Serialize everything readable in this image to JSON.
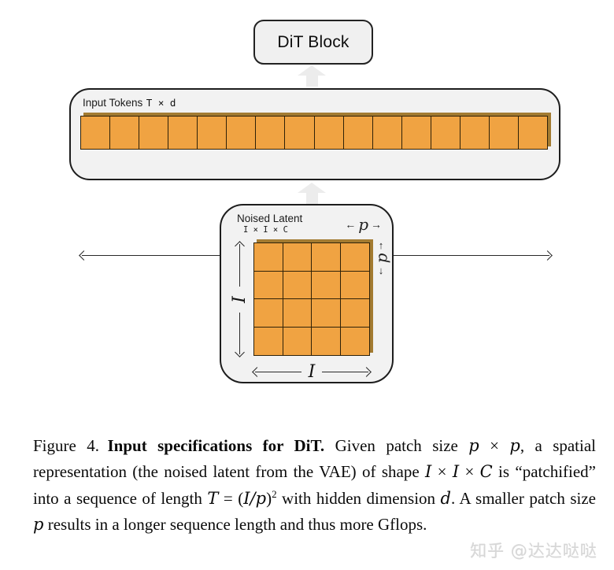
{
  "colors": {
    "panel_fill": "#f2f2f2",
    "panel_border": "#1d1d1d",
    "cell_orange": "#f0a342",
    "cell_border": "#2e2108",
    "cell_depth": "#a37b31",
    "flow_arrow": "#ececec",
    "watermark_gray": "#d7d7d7"
  },
  "dit_block": {
    "label": "DiT Block"
  },
  "input_tokens": {
    "title": "Input Tokens",
    "dims": "T × d",
    "token_count": 16,
    "formula": {
      "lhs": "T",
      "mid": " = (",
      "frac": "I/p",
      "close": ")",
      "sup": "2"
    }
  },
  "noised_latent": {
    "title": "Noised Latent",
    "dims": "I × I × C",
    "grid_rows": 4,
    "grid_cols": 4,
    "height_label": "I",
    "width_label": "I",
    "patch_label": "p",
    "arrows": {
      "left": "←",
      "right": "→",
      "up": "↑",
      "down": "↓"
    }
  },
  "caption": {
    "segments": [
      {
        "text": "Figure 4. ",
        "style": "plain"
      },
      {
        "text": "Input specifications for DiT.",
        "style": "bold"
      },
      {
        "text": " Given patch size ",
        "style": "plain"
      },
      {
        "text": "p",
        "style": "math"
      },
      {
        "text": " × ",
        "style": "plain"
      },
      {
        "text": "p",
        "style": "math"
      },
      {
        "text": ", a spatial representation (the noised latent from the VAE) of shape ",
        "style": "plain"
      },
      {
        "text": "I",
        "style": "math"
      },
      {
        "text": " × ",
        "style": "plain"
      },
      {
        "text": "I",
        "style": "math"
      },
      {
        "text": " × ",
        "style": "plain"
      },
      {
        "text": "C",
        "style": "math"
      },
      {
        "text": " is “patchified” into a sequence of length ",
        "style": "plain"
      },
      {
        "text": "T",
        "style": "math"
      },
      {
        "text": " = (",
        "style": "plain"
      },
      {
        "text": "I/p",
        "style": "math"
      },
      {
        "text": ")",
        "style": "plain"
      },
      {
        "text": "2",
        "style": "sup"
      },
      {
        "text": " with hidden dimension ",
        "style": "plain"
      },
      {
        "text": "d",
        "style": "math"
      },
      {
        "text": ". A smaller patch size ",
        "style": "plain"
      },
      {
        "text": "p",
        "style": "math"
      },
      {
        "text": " results in a longer sequence length and thus more Gflops.",
        "style": "plain"
      }
    ]
  },
  "watermark": "知乎 @达达哒哒"
}
